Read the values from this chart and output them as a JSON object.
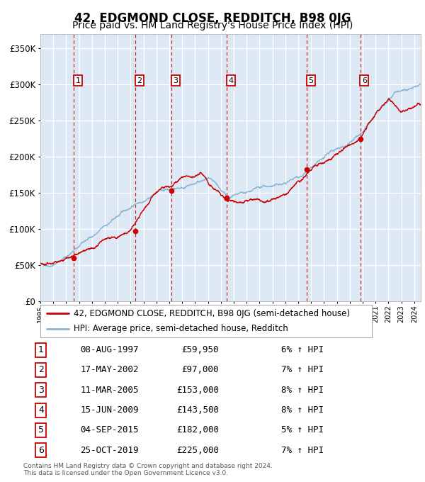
{
  "title": "42, EDGMOND CLOSE, REDDITCH, B98 0JG",
  "subtitle": "Price paid vs. HM Land Registry's House Price Index (HPI)",
  "footer": "Contains HM Land Registry data © Crown copyright and database right 2024.\nThis data is licensed under the Open Government Licence v3.0.",
  "legend_label_red": "42, EDGMOND CLOSE, REDDITCH, B98 0JG (semi-detached house)",
  "legend_label_blue": "HPI: Average price, semi-detached house, Redditch",
  "sales": [
    {
      "num": 1,
      "date": "08-AUG-1997",
      "price": "£59,950",
      "pct": "6%",
      "dir": "↑"
    },
    {
      "num": 2,
      "date": "17-MAY-2002",
      "price": "£97,000",
      "pct": "7%",
      "dir": "↑"
    },
    {
      "num": 3,
      "date": "11-MAR-2005",
      "price": "£153,000",
      "pct": "8%",
      "dir": "↑"
    },
    {
      "num": 4,
      "date": "15-JUN-2009",
      "price": "£143,500",
      "pct": "8%",
      "dir": "↑"
    },
    {
      "num": 5,
      "date": "04-SEP-2015",
      "price": "£182,000",
      "pct": "5%",
      "dir": "↑"
    },
    {
      "num": 6,
      "date": "25-OCT-2019",
      "price": "£225,000",
      "pct": "7%",
      "dir": "↑"
    }
  ],
  "sale_years": [
    1997.6,
    2002.37,
    2005.19,
    2009.45,
    2015.67,
    2019.81
  ],
  "sale_prices": [
    59950,
    97000,
    153000,
    143500,
    182000,
    225000
  ],
  "ylim": [
    0,
    370000
  ],
  "xlim_start": 1995.0,
  "xlim_end": 2024.5,
  "plot_bg_color": "#dce9f5",
  "red_line_color": "#cc0000",
  "blue_line_color": "#8ab4d4",
  "dashed_line_color": "#cc0000",
  "number_box_color": "#cc0000",
  "dot_color": "#cc0000",
  "title_fontsize": 12,
  "subtitle_fontsize": 10
}
